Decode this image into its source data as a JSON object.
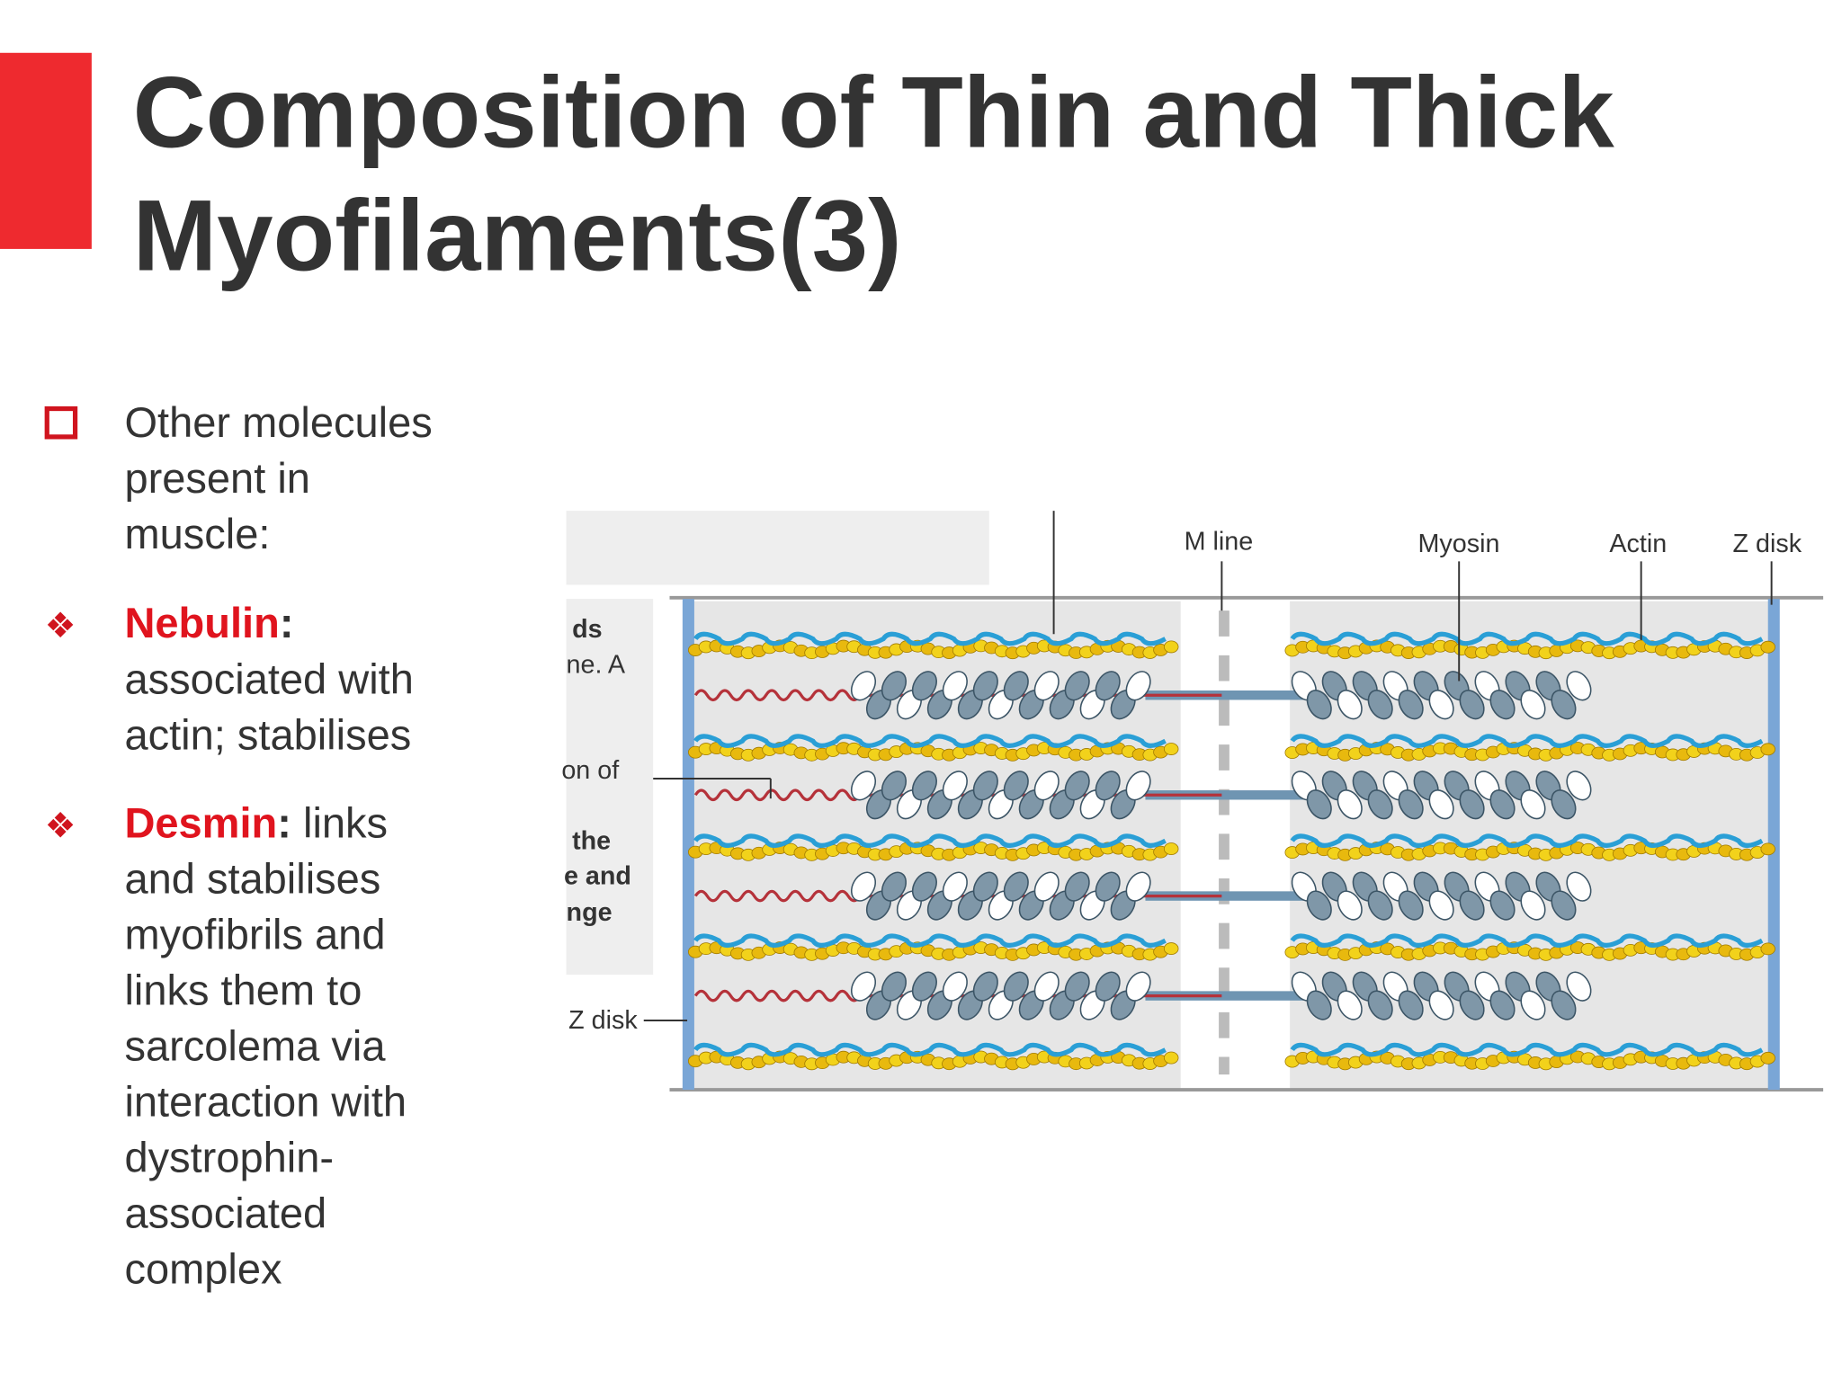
{
  "header": {
    "title_lines": [
      "Composition of Thin and Thick",
      "Myofilaments(3)"
    ]
  },
  "bullets": [
    {
      "lines": [
        "Other molecules",
        "present in",
        "muscle:"
      ]
    },
    {
      "term": "Nebulin",
      "colon": ":",
      "lines": [
        "associated with",
        "actin; stabilises"
      ]
    },
    {
      "term": "Desmin",
      "colon": ":",
      "tail": "links",
      "lines": [
        "and stabilises",
        "myofibrils and",
        "links them to",
        "sarcolema via",
        "interaction with",
        "dystrophin-",
        "associated",
        "complex"
      ]
    }
  ],
  "diagram": {
    "labels": {
      "m_line": "M  line",
      "myosin": "Myosin",
      "actin": "Actin",
      "z_disk_right": "Z disk",
      "z_disk_left": "Z disk"
    },
    "cropped_text": [
      "ds",
      "ne. A",
      "on of",
      "the",
      "e and",
      "nge"
    ]
  }
}
